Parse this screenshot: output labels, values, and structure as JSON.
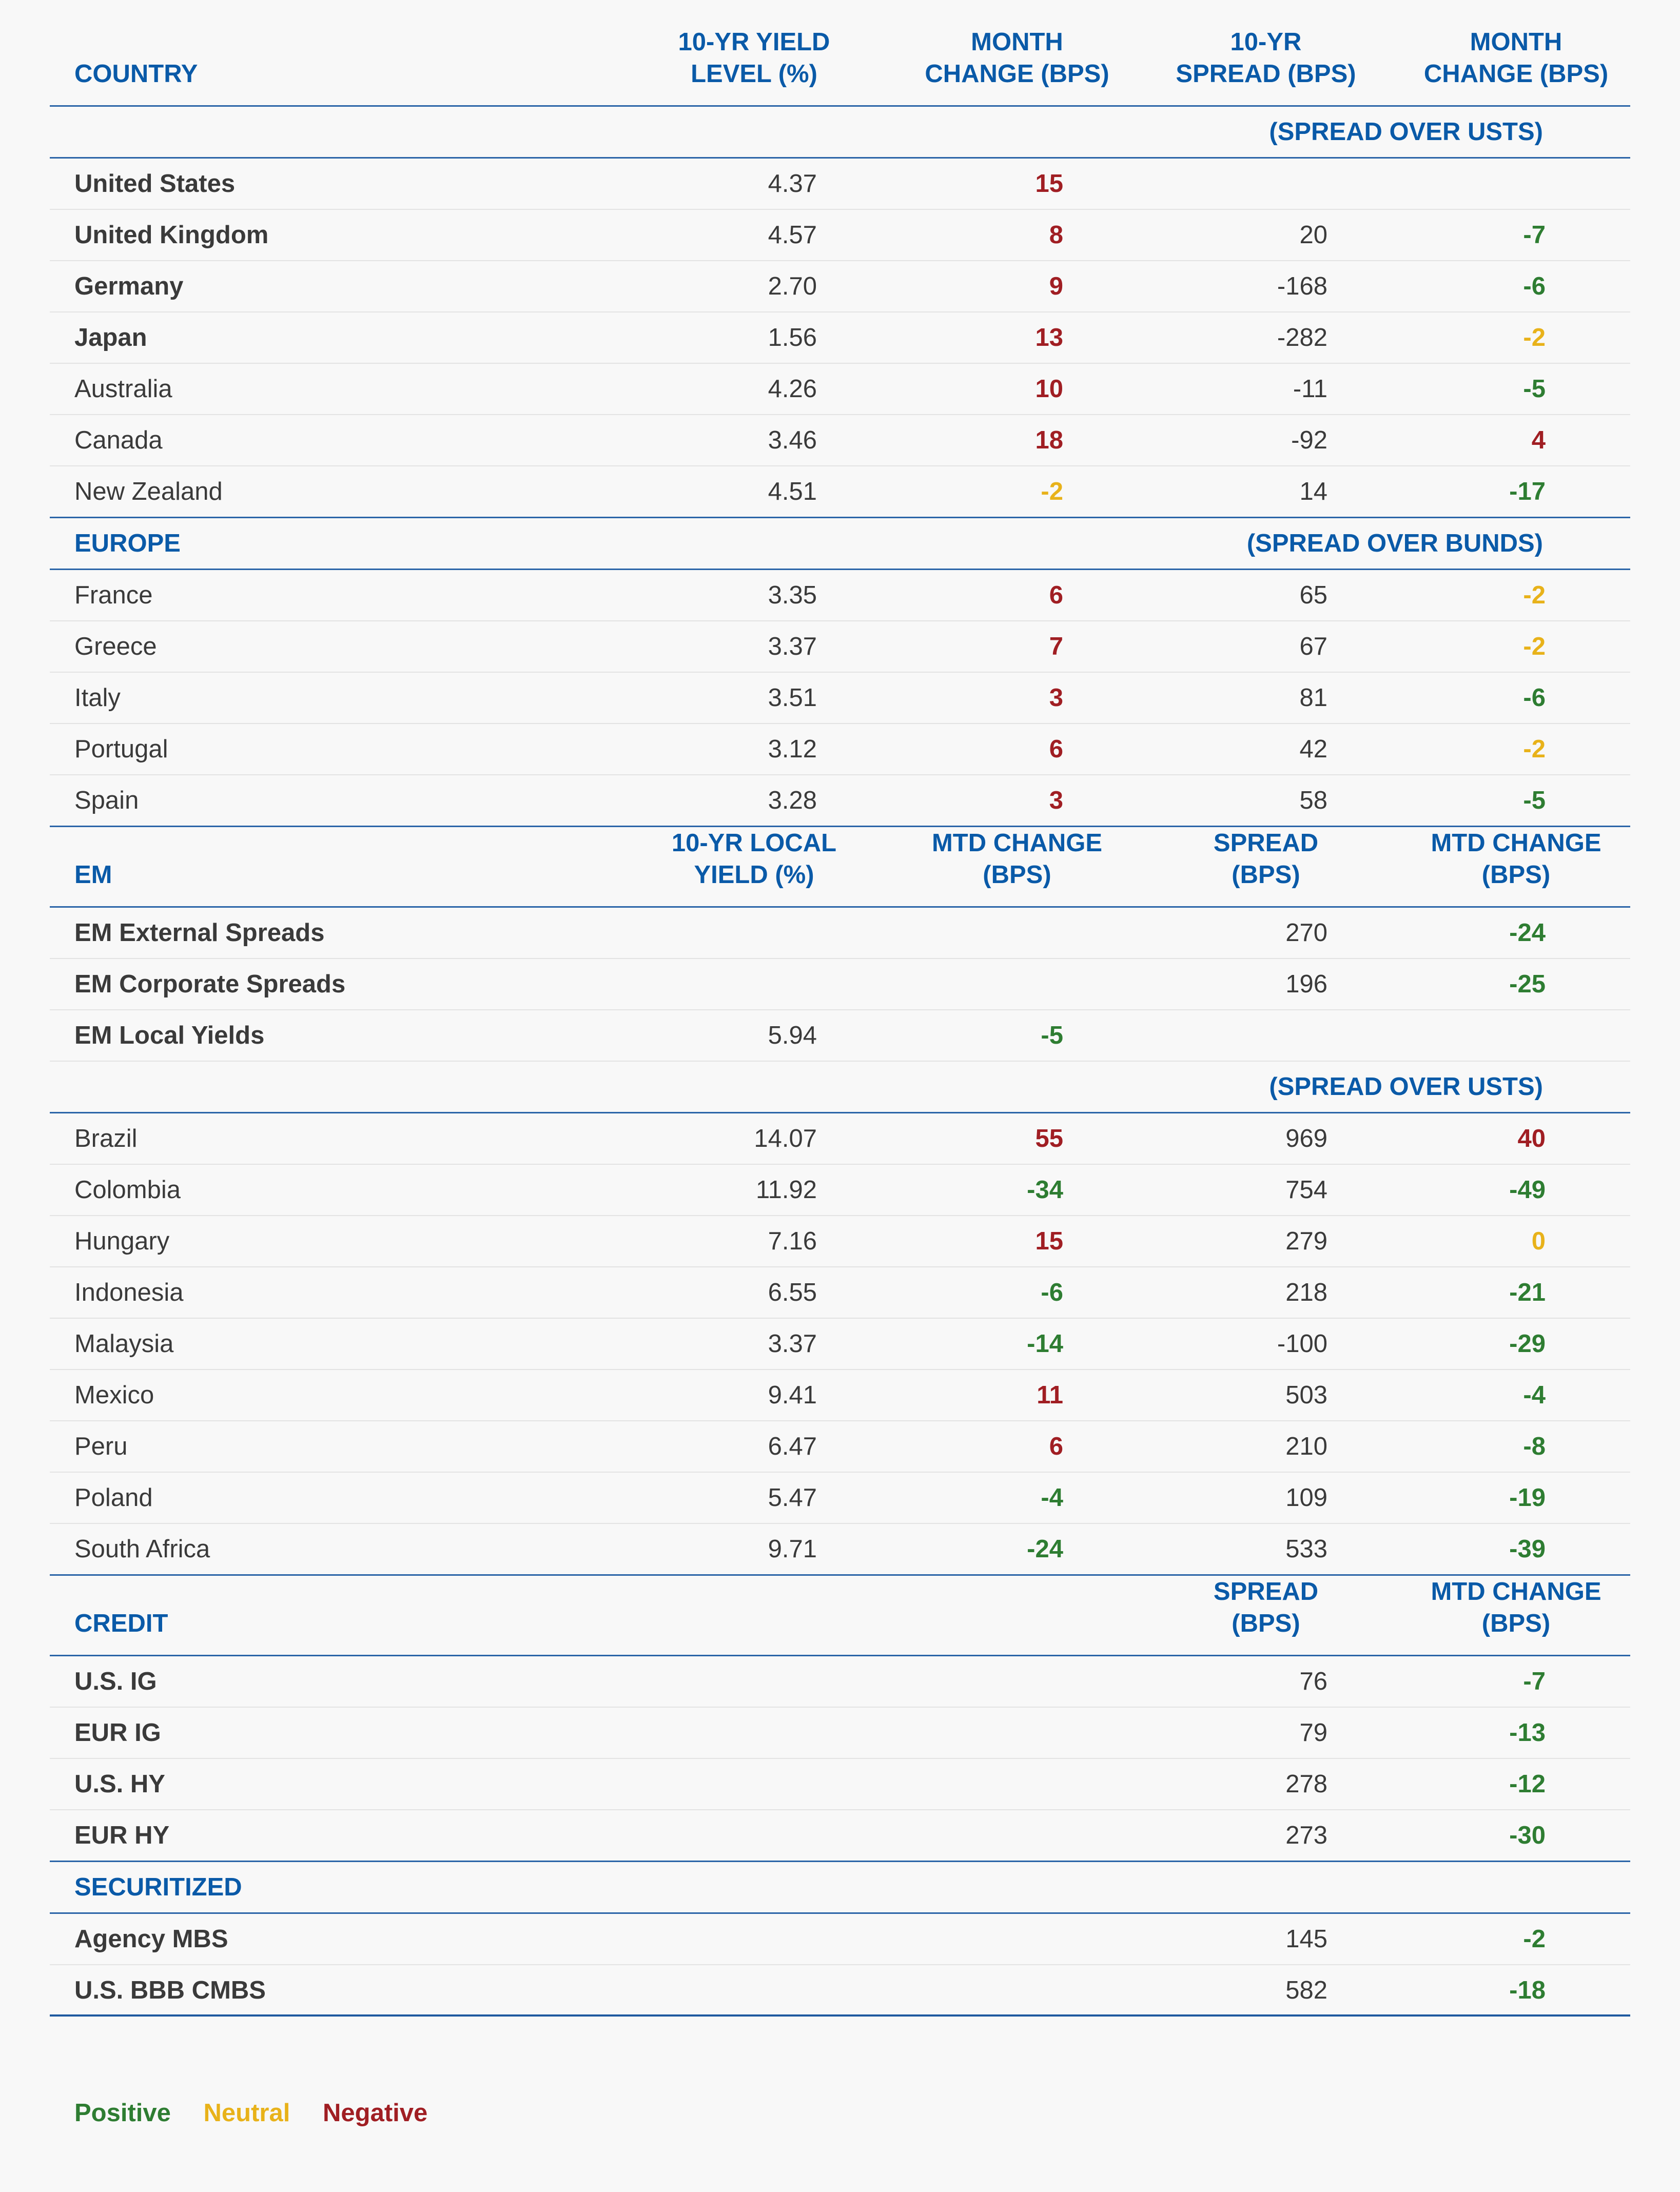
{
  "header": {
    "country": "COUNTRY",
    "yield_level": "10-YR YIELD\nLEVEL (%)",
    "month_change": "MONTH\nCHANGE (BPS)",
    "spread": "10-YR\nSPREAD (BPS)",
    "spread_change": "MONTH\nCHANGE (BPS)"
  },
  "spread_over_usts": "(SPREAD OVER USTS)",
  "developed": [
    {
      "name": "United States",
      "bold": true,
      "yield": "4.37",
      "chg": "15",
      "chg_s": "neg",
      "spread": "",
      "spread_chg": "",
      "spread_s": ""
    },
    {
      "name": "United Kingdom",
      "bold": true,
      "yield": "4.57",
      "chg": "8",
      "chg_s": "neg",
      "spread": "20",
      "spread_chg": "-7",
      "spread_s": "pos"
    },
    {
      "name": "Germany",
      "bold": true,
      "yield": "2.70",
      "chg": "9",
      "chg_s": "neg",
      "spread": "-168",
      "spread_chg": "-6",
      "spread_s": "pos"
    },
    {
      "name": "Japan",
      "bold": true,
      "yield": "1.56",
      "chg": "13",
      "chg_s": "neg",
      "spread": "-282",
      "spread_chg": "-2",
      "spread_s": "neu"
    },
    {
      "name": "Australia",
      "bold": false,
      "yield": "4.26",
      "chg": "10",
      "chg_s": "neg",
      "spread": "-11",
      "spread_chg": "-5",
      "spread_s": "pos"
    },
    {
      "name": "Canada",
      "bold": false,
      "yield": "3.46",
      "chg": "18",
      "chg_s": "neg",
      "spread": "-92",
      "spread_chg": "4",
      "spread_s": "neg"
    },
    {
      "name": "New Zealand",
      "bold": false,
      "yield": "4.51",
      "chg": "-2",
      "chg_s": "neu",
      "spread": "14",
      "spread_chg": "-17",
      "spread_s": "pos"
    }
  ],
  "europe_label": "EUROPE",
  "spread_over_bunds": "(SPREAD OVER BUNDS)",
  "europe": [
    {
      "name": "France",
      "bold": false,
      "yield": "3.35",
      "chg": "6",
      "chg_s": "neg",
      "spread": "65",
      "spread_chg": "-2",
      "spread_s": "neu"
    },
    {
      "name": "Greece",
      "bold": false,
      "yield": "3.37",
      "chg": "7",
      "chg_s": "neg",
      "spread": "67",
      "spread_chg": "-2",
      "spread_s": "neu"
    },
    {
      "name": "Italy",
      "bold": false,
      "yield": "3.51",
      "chg": "3",
      "chg_s": "neg",
      "spread": "81",
      "spread_chg": "-6",
      "spread_s": "pos"
    },
    {
      "name": "Portugal",
      "bold": false,
      "yield": "3.12",
      "chg": "6",
      "chg_s": "neg",
      "spread": "42",
      "spread_chg": "-2",
      "spread_s": "neu"
    },
    {
      "name": "Spain",
      "bold": false,
      "yield": "3.28",
      "chg": "3",
      "chg_s": "neg",
      "spread": "58",
      "spread_chg": "-5",
      "spread_s": "pos"
    }
  ],
  "em_header": {
    "label": "EM",
    "yield": "10-YR LOCAL\nYIELD (%)",
    "chg": "MTD CHANGE\n(BPS)",
    "spread": "SPREAD\n(BPS)",
    "spread_chg": "MTD CHANGE\n(BPS)"
  },
  "em_aggregate": [
    {
      "name": "EM External Spreads",
      "bold": true,
      "yield": "",
      "chg": "",
      "chg_s": "",
      "spread": "270",
      "spread_chg": "-24",
      "spread_s": "pos"
    },
    {
      "name": "EM Corporate Spreads",
      "bold": true,
      "yield": "",
      "chg": "",
      "chg_s": "",
      "spread": "196",
      "spread_chg": "-25",
      "spread_s": "pos"
    },
    {
      "name": "EM Local Yields",
      "bold": true,
      "yield": "5.94",
      "chg": "-5",
      "chg_s": "pos",
      "spread": "",
      "spread_chg": "",
      "spread_s": ""
    }
  ],
  "em_spread_label": "(SPREAD OVER USTS)",
  "em_countries": [
    {
      "name": "Brazil",
      "bold": false,
      "yield": "14.07",
      "chg": "55",
      "chg_s": "neg",
      "spread": "969",
      "spread_chg": "40",
      "spread_s": "neg"
    },
    {
      "name": "Colombia",
      "bold": false,
      "yield": "11.92",
      "chg": "-34",
      "chg_s": "pos",
      "spread": "754",
      "spread_chg": "-49",
      "spread_s": "pos"
    },
    {
      "name": "Hungary",
      "bold": false,
      "yield": "7.16",
      "chg": "15",
      "chg_s": "neg",
      "spread": "279",
      "spread_chg": "0",
      "spread_s": "neu"
    },
    {
      "name": "Indonesia",
      "bold": false,
      "yield": "6.55",
      "chg": "-6",
      "chg_s": "pos",
      "spread": "218",
      "spread_chg": "-21",
      "spread_s": "pos"
    },
    {
      "name": "Malaysia",
      "bold": false,
      "yield": "3.37",
      "chg": "-14",
      "chg_s": "pos",
      "spread": "-100",
      "spread_chg": "-29",
      "spread_s": "pos"
    },
    {
      "name": "Mexico",
      "bold": false,
      "yield": "9.41",
      "chg": "11",
      "chg_s": "neg",
      "spread": "503",
      "spread_chg": "-4",
      "spread_s": "pos"
    },
    {
      "name": "Peru",
      "bold": false,
      "yield": "6.47",
      "chg": "6",
      "chg_s": "neg",
      "spread": "210",
      "spread_chg": "-8",
      "spread_s": "pos"
    },
    {
      "name": "Poland",
      "bold": false,
      "yield": "5.47",
      "chg": "-4",
      "chg_s": "pos",
      "spread": "109",
      "spread_chg": "-19",
      "spread_s": "pos"
    },
    {
      "name": "South Africa",
      "bold": false,
      "yield": "9.71",
      "chg": "-24",
      "chg_s": "pos",
      "spread": "533",
      "spread_chg": "-39",
      "spread_s": "pos"
    }
  ],
  "credit_header": {
    "label": "CREDIT",
    "spread": "SPREAD\n(BPS)",
    "spread_chg": "MTD CHANGE\n(BPS)"
  },
  "credit": [
    {
      "name": "U.S. IG",
      "bold": true,
      "spread": "76",
      "spread_chg": "-7",
      "spread_s": "pos"
    },
    {
      "name": "EUR IG",
      "bold": true,
      "spread": "79",
      "spread_chg": "-13",
      "spread_s": "pos"
    },
    {
      "name": "U.S. HY",
      "bold": true,
      "spread": "278",
      "spread_chg": "-12",
      "spread_s": "pos"
    },
    {
      "name": "EUR HY",
      "bold": true,
      "spread": "273",
      "spread_chg": "-30",
      "spread_s": "pos"
    }
  ],
  "securitized_label": "SECURITIZED",
  "securitized": [
    {
      "name": "Agency MBS",
      "bold": true,
      "spread": "145",
      "spread_chg": "-2",
      "spread_s": "pos"
    },
    {
      "name": "U.S. BBB CMBS",
      "bold": true,
      "spread": "582",
      "spread_chg": "-18",
      "spread_s": "pos"
    }
  ],
  "legend": {
    "positive": "Positive",
    "neutral": "Neutral",
    "negative": "Negative"
  },
  "colors": {
    "header_blue": "#0a5aa8",
    "positive": "#2e7d32",
    "neutral": "#e8b21a",
    "negative": "#a01e23",
    "rule": "#2b65a8"
  }
}
